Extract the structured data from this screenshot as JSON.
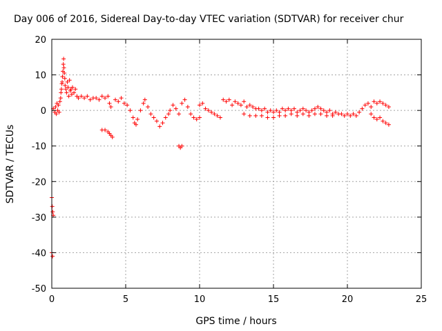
{
  "chart_data": {
    "type": "scatter",
    "title": "Day 006 of 2016, Sidereal Day-to-day VTEC variation (SDTVAR) for receiver chur",
    "xlabel": "GPS time / hours",
    "ylabel": "SDTVAR / TECUs",
    "xlim": [
      0,
      25
    ],
    "ylim": [
      -50,
      20
    ],
    "xticks": [
      0,
      5,
      10,
      15,
      20,
      25
    ],
    "yticks": [
      -50,
      -40,
      -30,
      -20,
      -10,
      0,
      10,
      20
    ],
    "xtick_labels": [
      "0",
      "5",
      "10",
      "15",
      "20",
      "25"
    ],
    "ytick_labels": [
      "-50",
      "-40",
      "-30",
      "-20",
      "-10",
      "0",
      "10",
      "20"
    ],
    "grid": true,
    "marker": "+",
    "marker_color": "#ff0000",
    "series": [
      {
        "name": "SDTVAR",
        "color": "#ff0000",
        "points": [
          [
            0.0,
            -24.5
          ],
          [
            0.03,
            -27.0
          ],
          [
            0.06,
            -28.5
          ],
          [
            0.1,
            -29.5
          ],
          [
            0.0,
            -40.0
          ],
          [
            0.05,
            -41.0
          ],
          [
            0.1,
            0.5
          ],
          [
            0.2,
            -0.5
          ],
          [
            0.25,
            1.0
          ],
          [
            0.3,
            -1.0
          ],
          [
            0.35,
            2.0
          ],
          [
            0.4,
            0.0
          ],
          [
            0.45,
            1.5
          ],
          [
            0.5,
            -0.5
          ],
          [
            0.55,
            2.5
          ],
          [
            0.6,
            3.5
          ],
          [
            0.62,
            5.0
          ],
          [
            0.65,
            6.0
          ],
          [
            0.68,
            7.5
          ],
          [
            0.7,
            8.0
          ],
          [
            0.72,
            9.5
          ],
          [
            0.75,
            11.0
          ],
          [
            0.78,
            13.0
          ],
          [
            0.8,
            14.5
          ],
          [
            0.82,
            12.0
          ],
          [
            0.85,
            10.5
          ],
          [
            0.88,
            9.0
          ],
          [
            0.9,
            7.0
          ],
          [
            0.95,
            6.0
          ],
          [
            1.0,
            5.0
          ],
          [
            1.05,
            8.0
          ],
          [
            1.1,
            6.5
          ],
          [
            1.15,
            4.0
          ],
          [
            1.2,
            8.5
          ],
          [
            1.25,
            5.5
          ],
          [
            1.3,
            6.0
          ],
          [
            1.35,
            4.5
          ],
          [
            1.4,
            6.5
          ],
          [
            1.5,
            5.0
          ],
          [
            1.6,
            6.0
          ],
          [
            1.7,
            4.0
          ],
          [
            1.8,
            3.5
          ],
          [
            2.0,
            4.0
          ],
          [
            2.2,
            3.5
          ],
          [
            2.4,
            4.0
          ],
          [
            2.6,
            3.0
          ],
          [
            2.8,
            3.5
          ],
          [
            3.0,
            3.5
          ],
          [
            3.2,
            3.0
          ],
          [
            3.4,
            4.0
          ],
          [
            3.6,
            3.5
          ],
          [
            3.8,
            4.0
          ],
          [
            3.9,
            2.0
          ],
          [
            4.0,
            1.0
          ],
          [
            3.4,
            -5.5
          ],
          [
            3.6,
            -5.5
          ],
          [
            3.8,
            -6.0
          ],
          [
            3.9,
            -6.5
          ],
          [
            4.0,
            -7.0
          ],
          [
            4.1,
            -7.5
          ],
          [
            4.3,
            3.0
          ],
          [
            4.5,
            2.5
          ],
          [
            4.7,
            3.5
          ],
          [
            4.9,
            2.0
          ],
          [
            5.1,
            1.5
          ],
          [
            5.3,
            0.0
          ],
          [
            5.5,
            -2.0
          ],
          [
            5.6,
            -3.5
          ],
          [
            5.7,
            -4.0
          ],
          [
            5.8,
            -2.5
          ],
          [
            6.0,
            0.0
          ],
          [
            6.2,
            2.0
          ],
          [
            6.3,
            3.0
          ],
          [
            6.5,
            1.0
          ],
          [
            6.7,
            -1.0
          ],
          [
            6.9,
            -2.0
          ],
          [
            7.1,
            -3.0
          ],
          [
            7.3,
            -4.5
          ],
          [
            7.5,
            -3.5
          ],
          [
            7.7,
            -2.0
          ],
          [
            7.9,
            -1.0
          ],
          [
            8.0,
            0.0
          ],
          [
            8.2,
            1.5
          ],
          [
            8.4,
            0.5
          ],
          [
            8.6,
            -1.0
          ],
          [
            8.8,
            2.0
          ],
          [
            9.0,
            3.0
          ],
          [
            9.2,
            1.0
          ],
          [
            9.4,
            -1.0
          ],
          [
            9.6,
            -2.0
          ],
          [
            9.8,
            -2.5
          ],
          [
            10.0,
            -2.0
          ],
          [
            8.6,
            -10.0
          ],
          [
            8.7,
            -10.5
          ],
          [
            8.8,
            -10.0
          ],
          [
            10.0,
            1.5
          ],
          [
            10.2,
            2.0
          ],
          [
            10.4,
            0.5
          ],
          [
            10.6,
            0.0
          ],
          [
            10.8,
            -0.5
          ],
          [
            11.0,
            -1.0
          ],
          [
            11.2,
            -1.5
          ],
          [
            11.4,
            -2.0
          ],
          [
            11.6,
            3.0
          ],
          [
            11.8,
            2.5
          ],
          [
            12.0,
            3.0
          ],
          [
            12.2,
            1.5
          ],
          [
            12.4,
            2.5
          ],
          [
            12.6,
            2.0
          ],
          [
            12.8,
            1.5
          ],
          [
            13.0,
            2.5
          ],
          [
            13.2,
            1.0
          ],
          [
            13.4,
            1.5
          ],
          [
            13.6,
            1.0
          ],
          [
            13.8,
            0.5
          ],
          [
            14.0,
            0.5
          ],
          [
            14.2,
            0.0
          ],
          [
            14.4,
            0.5
          ],
          [
            14.6,
            -0.5
          ],
          [
            14.8,
            0.0
          ],
          [
            15.0,
            -0.5
          ],
          [
            15.2,
            0.0
          ],
          [
            15.4,
            -0.5
          ],
          [
            15.6,
            0.5
          ],
          [
            15.8,
            0.0
          ],
          [
            16.0,
            0.5
          ],
          [
            16.2,
            0.0
          ],
          [
            16.4,
            0.5
          ],
          [
            16.6,
            -0.5
          ],
          [
            16.8,
            0.0
          ],
          [
            17.0,
            0.5
          ],
          [
            17.2,
            0.0
          ],
          [
            17.4,
            -0.5
          ],
          [
            17.6,
            0.0
          ],
          [
            17.8,
            0.5
          ],
          [
            18.0,
            1.0
          ],
          [
            18.2,
            0.5
          ],
          [
            18.4,
            0.0
          ],
          [
            18.6,
            -0.5
          ],
          [
            18.8,
            0.0
          ],
          [
            19.0,
            -1.0
          ],
          [
            19.2,
            -0.5
          ],
          [
            19.4,
            -1.0
          ],
          [
            19.6,
            -1.0
          ],
          [
            19.8,
            -1.5
          ],
          [
            20.0,
            -1.0
          ],
          [
            20.2,
            -1.5
          ],
          [
            20.4,
            -1.0
          ],
          [
            20.6,
            -1.5
          ],
          [
            20.8,
            -0.5
          ],
          [
            21.0,
            0.5
          ],
          [
            21.2,
            1.5
          ],
          [
            21.4,
            2.0
          ],
          [
            21.6,
            1.0
          ],
          [
            21.8,
            2.5
          ],
          [
            22.0,
            2.0
          ],
          [
            22.2,
            2.5
          ],
          [
            22.4,
            2.0
          ],
          [
            22.6,
            1.5
          ],
          [
            22.8,
            1.0
          ],
          [
            21.6,
            -1.0
          ],
          [
            21.8,
            -2.0
          ],
          [
            22.0,
            -2.5
          ],
          [
            22.2,
            -2.0
          ],
          [
            22.4,
            -3.0
          ],
          [
            22.6,
            -3.5
          ],
          [
            22.8,
            -4.0
          ],
          [
            13.0,
            -1.0
          ],
          [
            13.4,
            -1.5
          ],
          [
            13.8,
            -1.5
          ],
          [
            14.2,
            -1.5
          ],
          [
            14.6,
            -2.0
          ],
          [
            15.0,
            -2.0
          ],
          [
            15.4,
            -1.5
          ],
          [
            15.8,
            -1.5
          ],
          [
            16.2,
            -1.0
          ],
          [
            16.6,
            -1.5
          ],
          [
            17.0,
            -1.0
          ],
          [
            17.4,
            -1.5
          ],
          [
            17.8,
            -1.0
          ],
          [
            18.2,
            -1.0
          ],
          [
            18.6,
            -1.5
          ],
          [
            19.0,
            -1.5
          ]
        ]
      }
    ]
  }
}
